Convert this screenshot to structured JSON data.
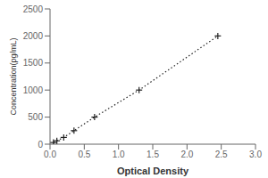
{
  "chart_data": {
    "type": "line",
    "x": [
      0.05,
      0.1,
      0.2,
      0.35,
      0.65,
      1.3,
      2.45
    ],
    "values": [
      31,
      63,
      125,
      250,
      500,
      1000,
      2000
    ],
    "xlabel": "Optical Density",
    "ylabel": "Concentration(pg/mL)",
    "xlim": [
      0,
      3
    ],
    "ylim": [
      0,
      2500
    ],
    "xticks": [
      {
        "value": 0,
        "label": "0.0"
      },
      0.5,
      {
        "value": 1,
        "label": "1.0"
      },
      1.5,
      {
        "value": 2,
        "label": "2.0"
      },
      2.5,
      {
        "value": 3,
        "label": "3.0"
      }
    ],
    "yticks": [
      0,
      500,
      1000,
      1500,
      2000,
      2500
    ],
    "color": "#222222",
    "marker": "plus",
    "line_style": "dotted",
    "grid": false
  }
}
